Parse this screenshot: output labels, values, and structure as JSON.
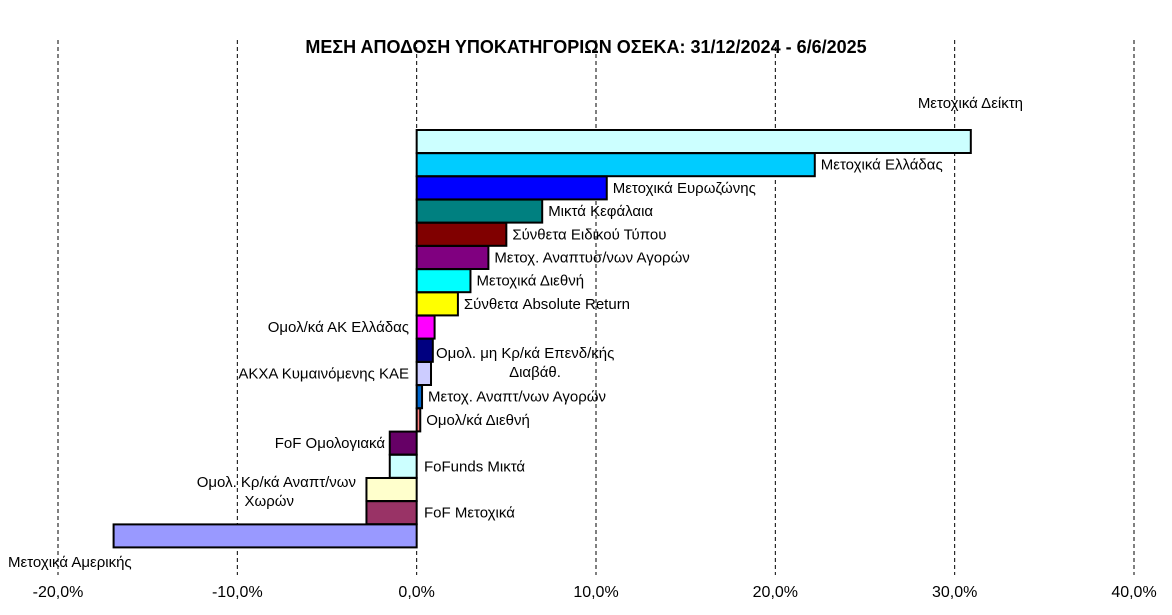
{
  "chart_data": {
    "type": "bar",
    "orientation": "horizontal",
    "title": "ΜΕΣΗ ΑΠΟΔΟΣΗ ΥΠΟΚΑΤΗΓΟΡΙΩΝ ΟΣΕΚΑ: 31/12/2024 - 6/6/2025",
    "xlim": [
      -20,
      40
    ],
    "x_ticks": [
      "-20,0%",
      "-10,0%",
      "0,0%",
      "10,0%",
      "20,0%",
      "30,0%",
      "40,0%"
    ],
    "grid": "vertical dashed",
    "categories": [
      "Μετοχικά Δείκτη",
      "Μετοχικά Ελλάδας",
      "Μετοχικά Ευρωζώνης",
      "Μικτά Κεφάλαια",
      "Σύνθετα Ειδικού Τύπου",
      "Μετοχ. Αναπτυσ/νων Αγορών",
      "Μετοχικά Διεθνή",
      "Σύνθετα Absolute Return",
      "Ομολ/κά ΑΚ Ελλάδας",
      "Ομολ. μη Κρ/κά Επενδ/κής Διαβάθ.",
      "ΑΚΧΑ Κυμαινόμενης ΚΑΕ",
      "Μετοχ. Αναπτ/νων Αγορών",
      "Ομολ/κά Διεθνή",
      "FoF Ομολογιακά",
      "FoFunds Μικτά",
      "Ομολ. Κρ/κά Αναπτ/νων Χωρών",
      "FoF Μετοχικά",
      "Μετοχικά Αμερικής"
    ],
    "values": [
      30.9,
      22.2,
      10.6,
      7.0,
      5.0,
      4.0,
      3.0,
      2.3,
      1.0,
      0.9,
      0.8,
      0.3,
      0.2,
      -1.5,
      -1.5,
      -2.8,
      -2.8,
      -16.9
    ],
    "colors": [
      "#CCFFFF",
      "#00CCFF",
      "#0000FF",
      "#008080",
      "#800000",
      "#800080",
      "#00FFFF",
      "#FFFF00",
      "#FF00FF",
      "#000080",
      "#CCCCFF",
      "#0066CC",
      "#FF8080",
      "#660066",
      "#CCFFFF",
      "#FFFFCC",
      "#993366",
      "#9999FF"
    ]
  }
}
